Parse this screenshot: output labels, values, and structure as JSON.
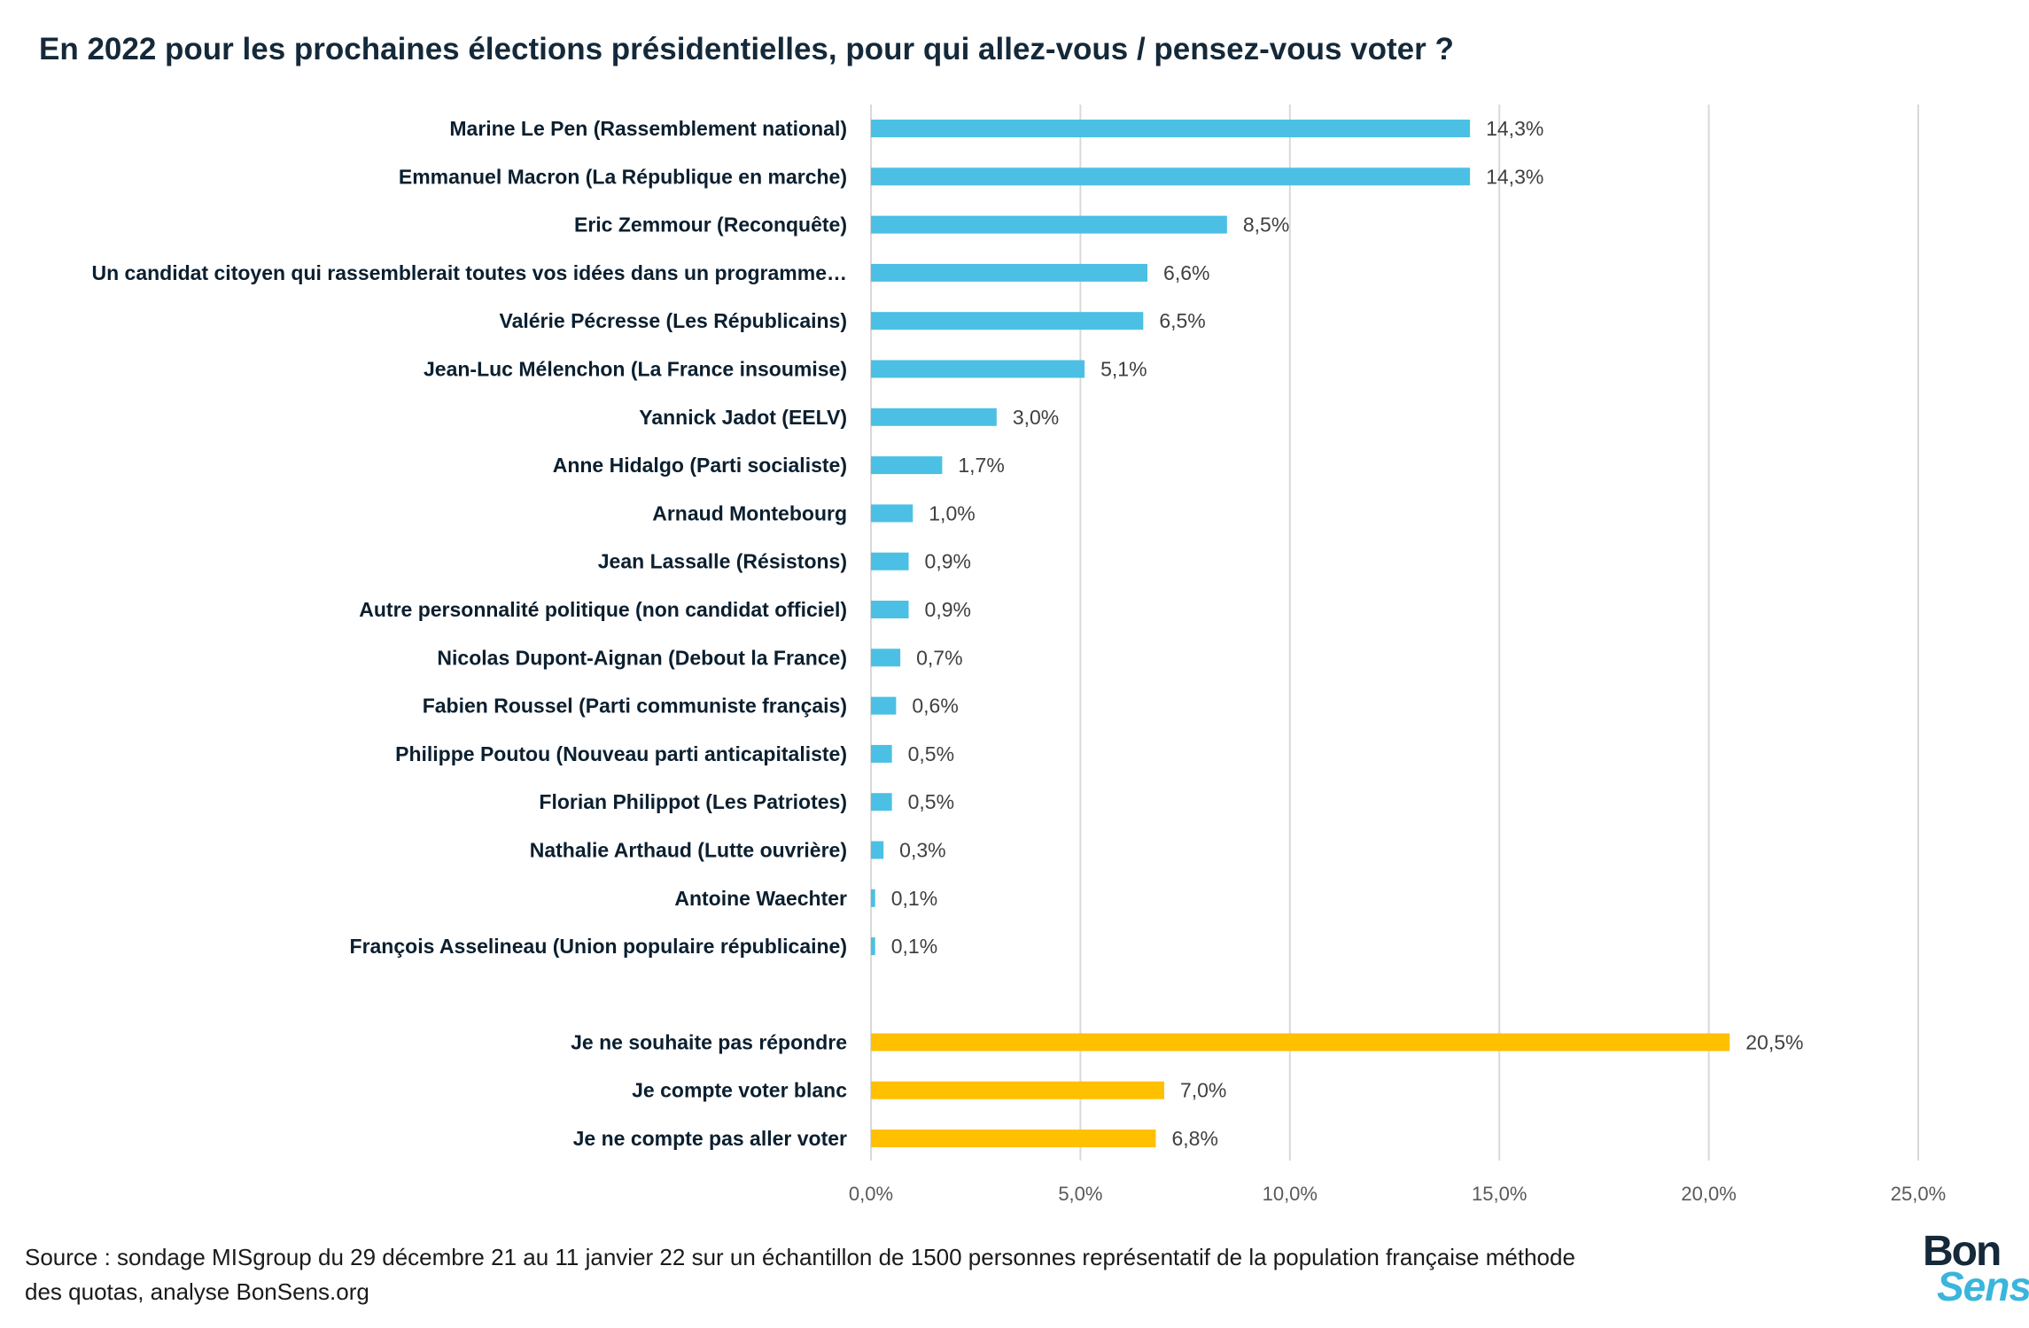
{
  "title": "En 2022 pour les prochaines élections présidentielles, pour qui allez-vous / pensez-vous voter ?",
  "source": "Source : sondage MISgroup du 29 décembre 21 au 11 janvier 22 sur un échantillon de 1500 personnes représentatif de la population française méthode des quotas, analyse BonSens.org",
  "logo": {
    "line1": "Bon",
    "line2": "Sens"
  },
  "colors": {
    "candidate_bar": "#4bc0e4",
    "other_bar": "#ffc000",
    "grid": "#d9d9d9"
  },
  "chart_data": {
    "type": "bar",
    "orientation": "horizontal",
    "title": "En 2022 pour les prochaines élections présidentielles, pour qui allez-vous / pensez-vous voter ?",
    "xlabel": "",
    "ylabel": "",
    "xlim": [
      0,
      25
    ],
    "x_ticks": [
      "0,0%",
      "5,0%",
      "10,0%",
      "15,0%",
      "20,0%",
      "25,0%"
    ],
    "grid": "vertical",
    "categories": [
      "Marine Le Pen (Rassemblement national)",
      "Emmanuel Macron (La République en marche)",
      "Eric Zemmour (Reconquête)",
      "Un candidat citoyen qui rassemblerait toutes vos idées dans un programme…",
      "Valérie Pécresse (Les Républicains)",
      "Jean-Luc Mélenchon (La France insoumise)",
      "Yannick Jadot (EELV)",
      "Anne Hidalgo (Parti socialiste)",
      "Arnaud Montebourg",
      "Jean Lassalle (Résistons)",
      "Autre personnalité politique (non candidat officiel)",
      "Nicolas Dupont-Aignan (Debout la France)",
      "Fabien Roussel (Parti communiste français)",
      "Philippe Poutou (Nouveau parti anticapitaliste)",
      "Florian Philippot (Les Patriotes)",
      "Nathalie Arthaud (Lutte ouvrière)",
      "Antoine Waechter",
      "François Asselineau (Union populaire républicaine)",
      "Je ne souhaite pas répondre",
      "Je compte voter blanc",
      "Je ne compte pas aller voter"
    ],
    "values": [
      14.3,
      14.3,
      8.5,
      6.6,
      6.5,
      5.1,
      3.0,
      1.7,
      1.0,
      0.9,
      0.9,
      0.7,
      0.6,
      0.5,
      0.5,
      0.3,
      0.1,
      0.1,
      20.5,
      7.0,
      6.8
    ],
    "value_labels": [
      "14,3%",
      "14,3%",
      "8,5%",
      "6,6%",
      "6,5%",
      "5,1%",
      "3,0%",
      "1,7%",
      "1,0%",
      "0,9%",
      "0,9%",
      "0,7%",
      "0,6%",
      "0,5%",
      "0,5%",
      "0,3%",
      "0,1%",
      "0,1%",
      "20,5%",
      "7,0%",
      "6,8%"
    ],
    "groups": [
      "candidate",
      "candidate",
      "candidate",
      "candidate",
      "candidate",
      "candidate",
      "candidate",
      "candidate",
      "candidate",
      "candidate",
      "candidate",
      "candidate",
      "candidate",
      "candidate",
      "candidate",
      "candidate",
      "candidate",
      "candidate",
      "other",
      "other",
      "other"
    ]
  }
}
